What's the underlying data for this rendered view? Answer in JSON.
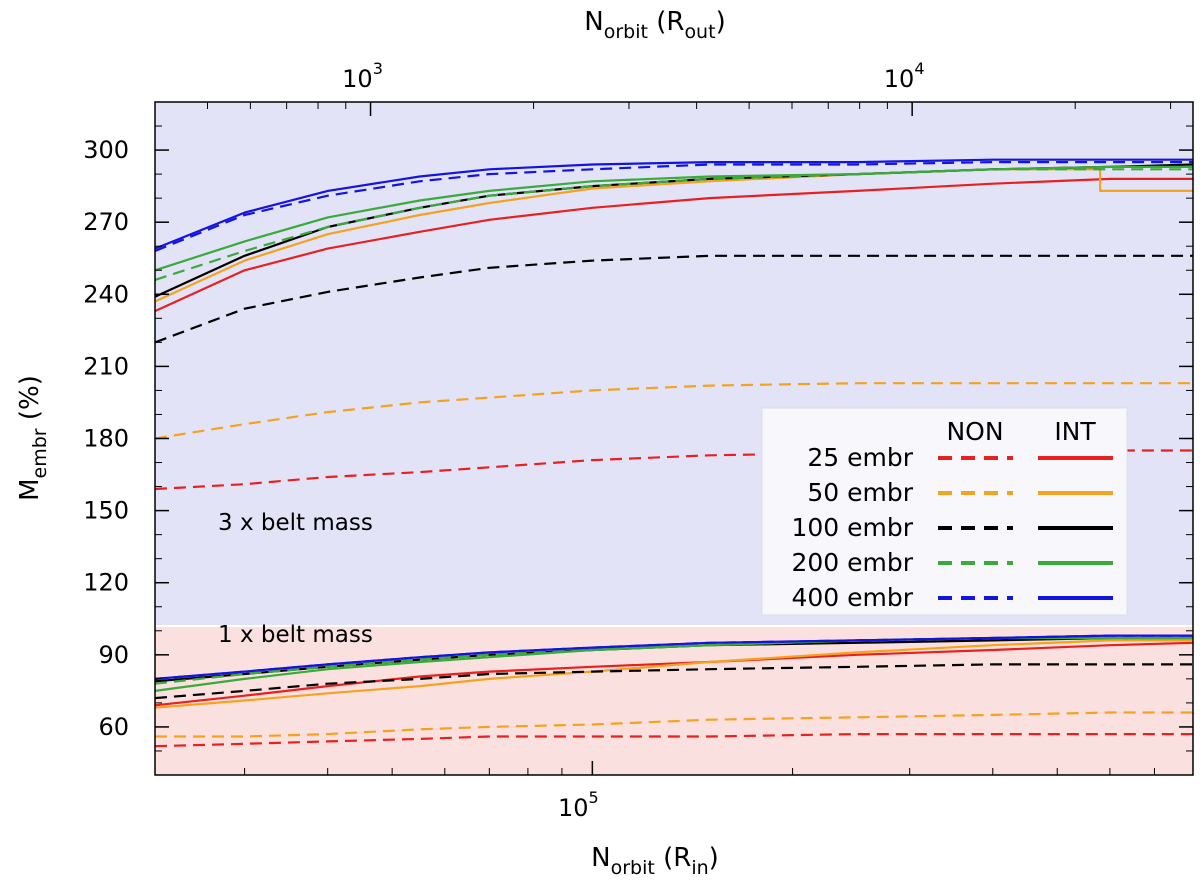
{
  "chart_data": {
    "type": "line",
    "ylabel": {
      "main": "M",
      "sub": "embr",
      "tail": " (%)"
    },
    "xlabel_bottom": {
      "main": "N",
      "sub": "orbit",
      "mid": " (R",
      "sub2": "in",
      "tail": ")"
    },
    "xlabel_top": {
      "main": "N",
      "sub": "orbit",
      "mid": " (R",
      "sub2": "out",
      "tail": ")"
    },
    "xscale": "log",
    "x_bottom_range": [
      22000,
      800000
    ],
    "x_top_range": [
      400,
      33000
    ],
    "ylim": [
      40,
      320
    ],
    "yticks": [
      "60",
      "90",
      "120",
      "150",
      "180",
      "210",
      "240",
      "270",
      "300"
    ],
    "ytick_values": [
      60,
      90,
      120,
      150,
      180,
      210,
      240,
      270,
      300
    ],
    "xticks_bottom": [
      {
        "base": "10",
        "exp": "5",
        "value": 100000
      }
    ],
    "xticks_top": [
      {
        "base": "10",
        "exp": "3",
        "value": 1000
      },
      {
        "base": "10",
        "exp": "4",
        "value": 10000
      }
    ],
    "regions": [
      {
        "label": "3 x belt mass",
        "y_range": [
          102,
          320
        ],
        "fill": "#e3e3f8",
        "text_color": "#1a1adc"
      },
      {
        "label": "1 x belt mass",
        "y_range": [
          40,
          102
        ],
        "fill": "#fbe0e0",
        "text_color": "#e01f1f"
      }
    ],
    "legend": {
      "position": "right",
      "col_non": "NON",
      "col_int": "INT",
      "entries": [
        {
          "label": "25 embr",
          "color": "#e82020"
        },
        {
          "label": "50 embr",
          "color": "#f5a21e"
        },
        {
          "label": "100 embr",
          "color": "#000000"
        },
        {
          "label": "200 embr",
          "color": "#3aaa3a"
        },
        {
          "label": "400 embr",
          "color": "#1414e0"
        }
      ]
    },
    "series": [
      {
        "name": "25 embr INT (3x)",
        "color": "#e82020",
        "dash": false,
        "x": [
          22000,
          30000,
          40000,
          55000,
          70000,
          100000,
          150000,
          250000,
          400000,
          600000,
          800000
        ],
        "y": [
          233,
          250,
          259,
          266,
          271,
          276,
          280,
          283,
          286,
          288,
          288
        ]
      },
      {
        "name": "25 embr NON (3x)",
        "color": "#e82020",
        "dash": true,
        "x": [
          22000,
          30000,
          40000,
          55000,
          70000,
          100000,
          150000,
          250000,
          400000,
          600000,
          800000
        ],
        "y": [
          159,
          161,
          164,
          166,
          168,
          171,
          173,
          174,
          175,
          175,
          175
        ]
      },
      {
        "name": "50 embr INT (3x)",
        "color": "#f5a21e",
        "dash": false,
        "x": [
          22000,
          30000,
          40000,
          55000,
          70000,
          100000,
          150000,
          250000,
          400000,
          580000,
          580001,
          800000
        ],
        "y": [
          237,
          254,
          265,
          273,
          278,
          284,
          287,
          290,
          292,
          292,
          283,
          283
        ]
      },
      {
        "name": "50 embr NON (3x)",
        "color": "#f5a21e",
        "dash": true,
        "x": [
          22000,
          30000,
          40000,
          55000,
          70000,
          100000,
          150000,
          250000,
          400000,
          600000,
          800000
        ],
        "y": [
          180,
          186,
          191,
          195,
          197,
          200,
          202,
          203,
          203,
          203,
          203
        ]
      },
      {
        "name": "100 embr INT (3x)",
        "color": "#000000",
        "dash": false,
        "x": [
          22000,
          30000,
          40000,
          55000,
          70000,
          100000,
          150000,
          250000,
          400000,
          600000,
          800000
        ],
        "y": [
          239,
          256,
          268,
          276,
          281,
          285,
          288,
          290,
          292,
          293,
          294
        ]
      },
      {
        "name": "100 embr NON (3x)",
        "color": "#000000",
        "dash": true,
        "x": [
          22000,
          30000,
          40000,
          55000,
          70000,
          100000,
          150000,
          250000,
          400000,
          600000,
          800000
        ],
        "y": [
          220,
          234,
          241,
          247,
          251,
          254,
          256,
          256,
          256,
          256,
          256
        ]
      },
      {
        "name": "200 embr INT (3x)",
        "color": "#3aaa3a",
        "dash": false,
        "x": [
          22000,
          30000,
          40000,
          55000,
          70000,
          100000,
          150000,
          250000,
          400000,
          600000,
          800000
        ],
        "y": [
          250,
          262,
          272,
          279,
          283,
          287,
          289,
          290,
          292,
          293,
          293
        ]
      },
      {
        "name": "200 embr NON (3x)",
        "color": "#3aaa3a",
        "dash": true,
        "x": [
          22000,
          30000,
          40000,
          55000,
          70000,
          100000,
          150000,
          250000,
          400000,
          600000,
          800000
        ],
        "y": [
          246,
          258,
          268,
          276,
          281,
          285,
          288,
          290,
          292,
          292,
          292
        ]
      },
      {
        "name": "400 embr INT (3x)",
        "color": "#1414e0",
        "dash": false,
        "x": [
          22000,
          30000,
          40000,
          55000,
          70000,
          100000,
          150000,
          250000,
          400000,
          600000,
          800000
        ],
        "y": [
          259,
          274,
          283,
          289,
          292,
          294,
          295,
          295,
          296,
          296,
          296
        ]
      },
      {
        "name": "400 embr NON (3x)",
        "color": "#1414e0",
        "dash": true,
        "x": [
          22000,
          30000,
          40000,
          55000,
          70000,
          100000,
          150000,
          250000,
          400000,
          600000,
          800000
        ],
        "y": [
          258,
          273,
          281,
          287,
          290,
          292,
          294,
          294,
          295,
          295,
          295
        ]
      },
      {
        "name": "25 embr INT (1x)",
        "color": "#e82020",
        "dash": false,
        "x": [
          22000,
          30000,
          40000,
          55000,
          70000,
          100000,
          150000,
          250000,
          400000,
          600000,
          800000
        ],
        "y": [
          69,
          73,
          77,
          81,
          83,
          85,
          87,
          90,
          92,
          94,
          95
        ]
      },
      {
        "name": "25 embr NON (1x)",
        "color": "#e82020",
        "dash": true,
        "x": [
          22000,
          30000,
          40000,
          55000,
          70000,
          100000,
          150000,
          250000,
          400000,
          600000,
          800000
        ],
        "y": [
          52,
          53,
          54,
          55,
          56,
          56,
          56,
          57,
          57,
          57,
          57
        ]
      },
      {
        "name": "50 embr INT (1x)",
        "color": "#f5a21e",
        "dash": false,
        "x": [
          22000,
          30000,
          40000,
          55000,
          70000,
          100000,
          150000,
          250000,
          400000,
          600000,
          800000
        ],
        "y": [
          68,
          71,
          74,
          77,
          80,
          83,
          87,
          91,
          94,
          96,
          96
        ]
      },
      {
        "name": "50 embr NON (1x)",
        "color": "#f5a21e",
        "dash": true,
        "x": [
          22000,
          30000,
          40000,
          55000,
          70000,
          100000,
          150000,
          250000,
          400000,
          600000,
          800000
        ],
        "y": [
          56,
          56,
          57,
          59,
          60,
          61,
          63,
          64,
          65,
          66,
          66
        ]
      },
      {
        "name": "100 embr INT (1x)",
        "color": "#000000",
        "dash": false,
        "x": [
          22000,
          30000,
          40000,
          55000,
          70000,
          100000,
          150000,
          250000,
          400000,
          600000,
          800000
        ],
        "y": [
          79,
          82,
          85,
          88,
          90,
          92,
          94,
          95,
          96,
          97,
          97
        ]
      },
      {
        "name": "100 embr NON (1x)",
        "color": "#000000",
        "dash": true,
        "x": [
          22000,
          30000,
          40000,
          55000,
          70000,
          100000,
          150000,
          250000,
          400000,
          600000,
          800000
        ],
        "y": [
          72,
          75,
          78,
          80,
          82,
          83,
          84,
          85,
          86,
          86,
          86
        ]
      },
      {
        "name": "200 embr INT (1x)",
        "color": "#3aaa3a",
        "dash": false,
        "x": [
          22000,
          30000,
          40000,
          55000,
          70000,
          100000,
          150000,
          250000,
          400000,
          600000,
          800000
        ],
        "y": [
          75,
          80,
          84,
          87,
          89,
          92,
          94,
          96,
          97,
          97,
          97
        ]
      },
      {
        "name": "200 embr NON (1x)",
        "color": "#3aaa3a",
        "dash": true,
        "x": [
          22000,
          30000,
          40000,
          55000,
          70000,
          100000,
          150000,
          250000,
          400000,
          600000,
          800000
        ],
        "y": [
          78,
          82,
          85,
          88,
          90,
          92,
          94,
          96,
          97,
          97,
          97
        ]
      },
      {
        "name": "400 embr INT (1x)",
        "color": "#1414e0",
        "dash": false,
        "x": [
          22000,
          30000,
          40000,
          55000,
          70000,
          100000,
          150000,
          250000,
          400000,
          600000,
          800000
        ],
        "y": [
          80,
          83,
          86,
          89,
          91,
          93,
          95,
          96,
          97,
          98,
          98
        ]
      },
      {
        "name": "400 embr NON (1x)",
        "color": "#1414e0",
        "dash": true,
        "x": [
          22000,
          30000,
          40000,
          55000,
          70000,
          100000,
          150000,
          250000,
          400000,
          600000,
          800000
        ],
        "y": [
          80,
          83,
          86,
          89,
          91,
          93,
          95,
          96,
          97,
          98,
          98
        ]
      }
    ]
  }
}
